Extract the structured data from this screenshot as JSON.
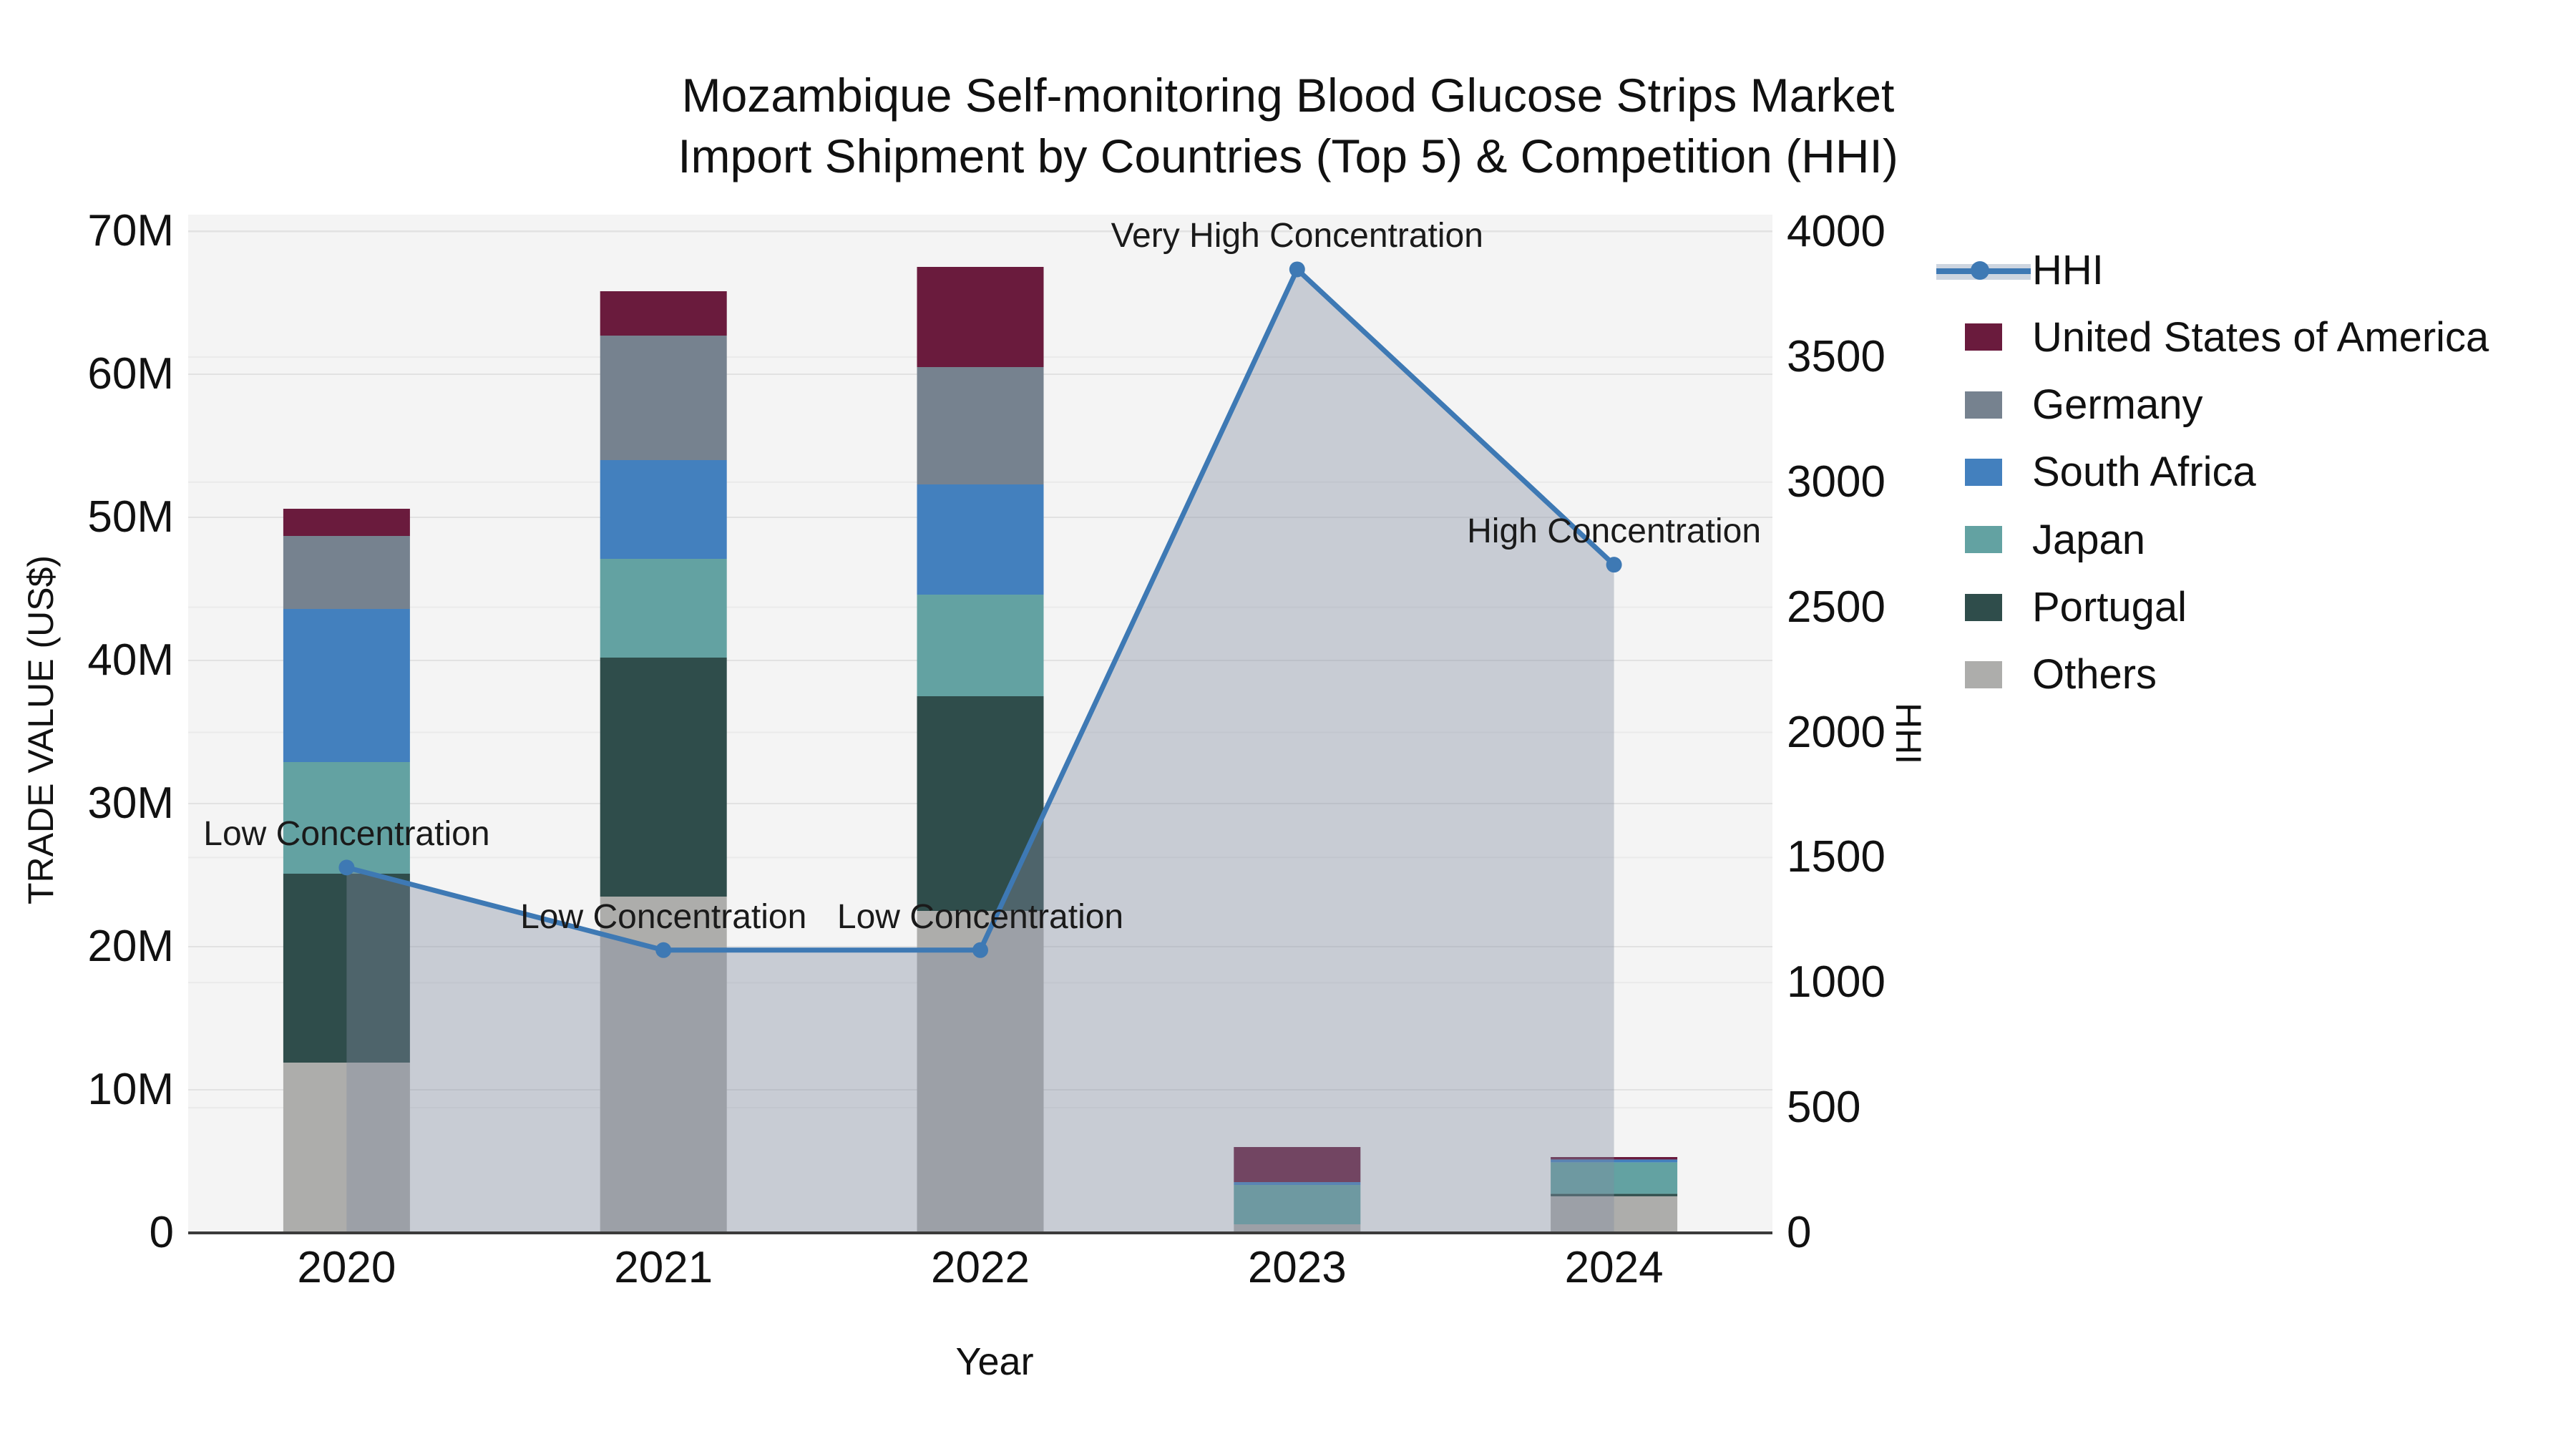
{
  "title": {
    "line1": "Mozambique Self-monitoring Blood Glucose Strips Market",
    "line2": "Import Shipment by Countries (Top 5) & Competition (HHI)"
  },
  "axes": {
    "x": {
      "title": "Year",
      "categories": [
        "2020",
        "2021",
        "2022",
        "2023",
        "2024"
      ]
    },
    "y_left": {
      "title": "TRADE VALUE (US$)",
      "tick_labels": [
        "0",
        "10M",
        "20M",
        "30M",
        "40M",
        "50M",
        "60M",
        "70M"
      ]
    },
    "y_right": {
      "title": "HHI",
      "tick_labels": [
        "0",
        "500",
        "1000",
        "1500",
        "2000",
        "2500",
        "3000",
        "3500",
        "4000"
      ]
    }
  },
  "legend": {
    "items": [
      {
        "label": "HHI",
        "swatch": "line-marker",
        "color": "#3E79B4",
        "band": "#CDD5E0"
      },
      {
        "label": "United States of America",
        "swatch": "square",
        "color": "#6A1B3D"
      },
      {
        "label": "Germany",
        "swatch": "square",
        "color": "#76828F"
      },
      {
        "label": "South Africa",
        "swatch": "square",
        "color": "#4380BE"
      },
      {
        "label": "Japan",
        "swatch": "square",
        "color": "#63A2A2"
      },
      {
        "label": "Portugal",
        "swatch": "square",
        "color": "#2F4D4B"
      },
      {
        "label": "Others",
        "swatch": "square",
        "color": "#ADADAB"
      }
    ]
  },
  "chart_data": {
    "type": "bar",
    "subtype": "stacked-bars-with-secondary-axis-line",
    "title": "Mozambique Self-monitoring Blood Glucose Strips Market Import Shipment by Countries (Top 5) & Competition (HHI)",
    "categories": [
      2020,
      2021,
      2022,
      2023,
      2024
    ],
    "xlabel": "Year",
    "ylabel_left": "TRADE VALUE (US$)",
    "ylabel_right": "HHI",
    "ylim_left_musd": [
      0,
      70
    ],
    "ylim_right": [
      0,
      4000
    ],
    "grid": true,
    "legend_position": "right",
    "unit": "million US$",
    "stack_order_bottom_to_top": [
      "Others",
      "Portugal",
      "Japan",
      "South Africa",
      "Germany",
      "United States of America"
    ],
    "series": [
      {
        "name": "United States of America",
        "color": "#6A1B3D",
        "values_musd": [
          1.9,
          3.1,
          7.0,
          2.45,
          0.17
        ]
      },
      {
        "name": "Germany",
        "color": "#76828F",
        "values_musd": [
          5.1,
          8.7,
          8.2,
          0,
          0
        ]
      },
      {
        "name": "South Africa",
        "color": "#4380BE",
        "values_musd": [
          10.7,
          6.9,
          7.7,
          0.2,
          0.2
        ]
      },
      {
        "name": "Japan",
        "color": "#63A2A2",
        "values_musd": [
          7.8,
          6.9,
          7.1,
          2.75,
          2.2
        ]
      },
      {
        "name": "Portugal",
        "color": "#2F4D4B",
        "values_musd": [
          13.2,
          16.7,
          15.0,
          0,
          0.17
        ]
      },
      {
        "name": "Others",
        "color": "#ADADAB",
        "values_musd": [
          11.9,
          23.5,
          22.5,
          0.6,
          2.56
        ]
      }
    ],
    "bar_totals_musd": [
      50.6,
      65.8,
      67.5,
      6.0,
      5.3
    ],
    "line_series": {
      "name": "HHI",
      "axis": "right",
      "color": "#3E79B4",
      "area_fill": "rgba(128,140,161,0.38)",
      "values": [
        1460,
        1130,
        1130,
        3850,
        2670
      ],
      "point_labels": [
        "Low Concentration",
        "Low Concentration",
        "Low Concentration",
        "Very High Concentration",
        "High Concentration"
      ]
    },
    "plot_bg": "#F4F4F4",
    "gridline_color_left": "#E2E2E2",
    "gridline_color_right": "#EAEAEA",
    "axis_line_color": "#3B3B3B"
  }
}
